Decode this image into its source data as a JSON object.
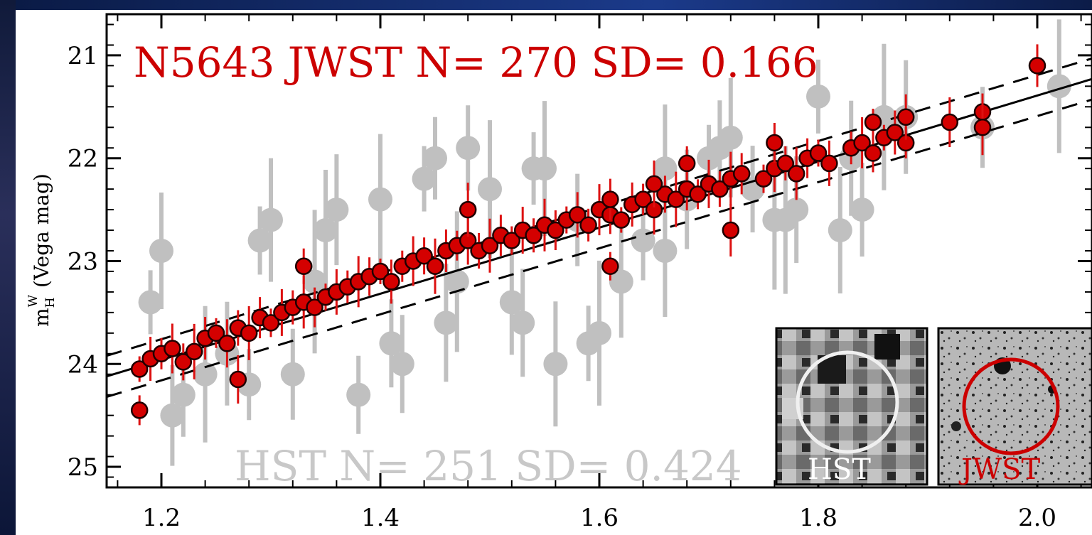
{
  "chart_data": {
    "type": "scatter",
    "title": "N5643 JWST N=  270  SD= 0.166",
    "hst_label": "HST N=  251 SD= 0.424",
    "ylabel_main": "m",
    "ylabel_sup": "W",
    "ylabel_sub": "H",
    "ylabel_rest": "(Vega mag)",
    "xlim": [
      1.15,
      2.05
    ],
    "ylim": [
      25.2,
      20.6
    ],
    "xticks": [
      1.2,
      1.4,
      1.6,
      1.8,
      2.0
    ],
    "xtick_labels": [
      "1.2",
      "1.4",
      "1.6",
      "1.8",
      "2.0"
    ],
    "yticks": [
      21,
      22,
      23,
      24,
      25
    ],
    "ytick_labels": [
      "21",
      "22",
      "23",
      "24",
      "25"
    ],
    "fit_line": {
      "x": [
        1.15,
        2.05
      ],
      "y": [
        24.12,
        21.23
      ],
      "style": "solid"
    },
    "fit_band_upper": {
      "x": [
        1.15,
        2.05
      ],
      "y": [
        23.92,
        21.03
      ],
      "style": "dashed"
    },
    "fit_band_lower": {
      "x": [
        1.15,
        2.05
      ],
      "y": [
        24.32,
        21.43
      ],
      "style": "dashed"
    },
    "series": [
      {
        "name": "JWST",
        "color": "#cc0000",
        "x": [
          1.18,
          1.19,
          1.2,
          1.21,
          1.22,
          1.23,
          1.24,
          1.25,
          1.26,
          1.27,
          1.28,
          1.29,
          1.3,
          1.31,
          1.32,
          1.33,
          1.34,
          1.35,
          1.36,
          1.37,
          1.38,
          1.39,
          1.4,
          1.41,
          1.42,
          1.43,
          1.44,
          1.45,
          1.46,
          1.47,
          1.48,
          1.49,
          1.5,
          1.51,
          1.52,
          1.53,
          1.54,
          1.55,
          1.56,
          1.57,
          1.58,
          1.59,
          1.6,
          1.61,
          1.62,
          1.63,
          1.64,
          1.65,
          1.66,
          1.67,
          1.68,
          1.69,
          1.7,
          1.71,
          1.72,
          1.73,
          1.75,
          1.76,
          1.77,
          1.78,
          1.79,
          1.8,
          1.81,
          1.83,
          1.84,
          1.85,
          1.86,
          1.87,
          1.88,
          1.92,
          1.95,
          1.95,
          2.0,
          1.18,
          1.27,
          1.33,
          1.48,
          1.61,
          1.61,
          1.65,
          1.68,
          1.72,
          1.76,
          1.85,
          1.88
        ],
        "y": [
          24.05,
          23.95,
          23.9,
          23.85,
          23.98,
          23.88,
          23.75,
          23.7,
          23.8,
          23.65,
          23.7,
          23.55,
          23.6,
          23.5,
          23.45,
          23.4,
          23.45,
          23.35,
          23.3,
          23.25,
          23.2,
          23.15,
          23.1,
          23.2,
          23.05,
          23.0,
          22.95,
          23.05,
          22.9,
          22.85,
          22.8,
          22.9,
          22.85,
          22.75,
          22.8,
          22.7,
          22.75,
          22.65,
          22.7,
          22.6,
          22.55,
          22.65,
          22.5,
          22.55,
          22.6,
          22.45,
          22.4,
          22.5,
          22.35,
          22.4,
          22.3,
          22.35,
          22.25,
          22.3,
          22.2,
          22.15,
          22.2,
          22.1,
          22.05,
          22.15,
          22.0,
          21.95,
          22.05,
          21.9,
          21.85,
          21.95,
          21.8,
          21.75,
          21.85,
          21.65,
          21.55,
          21.7,
          21.1,
          24.45,
          24.15,
          23.05,
          22.5,
          22.4,
          23.05,
          22.25,
          22.05,
          22.7,
          21.85,
          21.65,
          21.6
        ]
      },
      {
        "name": "HST",
        "color": "#c0c0c0",
        "x": [
          1.19,
          1.2,
          1.22,
          1.24,
          1.26,
          1.28,
          1.3,
          1.32,
          1.34,
          1.36,
          1.38,
          1.4,
          1.42,
          1.44,
          1.46,
          1.48,
          1.5,
          1.52,
          1.54,
          1.56,
          1.58,
          1.6,
          1.62,
          1.64,
          1.66,
          1.68,
          1.7,
          1.72,
          1.74,
          1.76,
          1.78,
          1.8,
          1.82,
          1.84,
          1.86,
          1.88,
          1.95,
          2.02,
          1.21,
          1.29,
          1.35,
          1.41,
          1.47,
          1.53,
          1.59,
          1.66,
          1.71,
          1.77,
          1.83,
          1.45,
          1.55
        ],
        "y": [
          23.4,
          22.9,
          24.3,
          24.1,
          23.9,
          24.2,
          22.6,
          24.1,
          23.2,
          22.5,
          24.3,
          22.4,
          24.0,
          22.2,
          23.6,
          21.9,
          22.3,
          23.4,
          22.1,
          24.0,
          22.6,
          23.7,
          23.2,
          22.8,
          22.9,
          22.4,
          22.0,
          21.8,
          22.3,
          22.6,
          22.5,
          21.4,
          22.7,
          22.5,
          21.6,
          21.6,
          21.7,
          21.3,
          24.5,
          22.8,
          22.7,
          23.8,
          23.2,
          23.6,
          23.8,
          22.1,
          21.9,
          22.6,
          22.0,
          22.0,
          22.1
        ]
      }
    ],
    "insets": [
      {
        "label": "HST",
        "label_color": "#ffffff"
      },
      {
        "label": "JWST",
        "label_color": "#cc0000"
      }
    ]
  }
}
